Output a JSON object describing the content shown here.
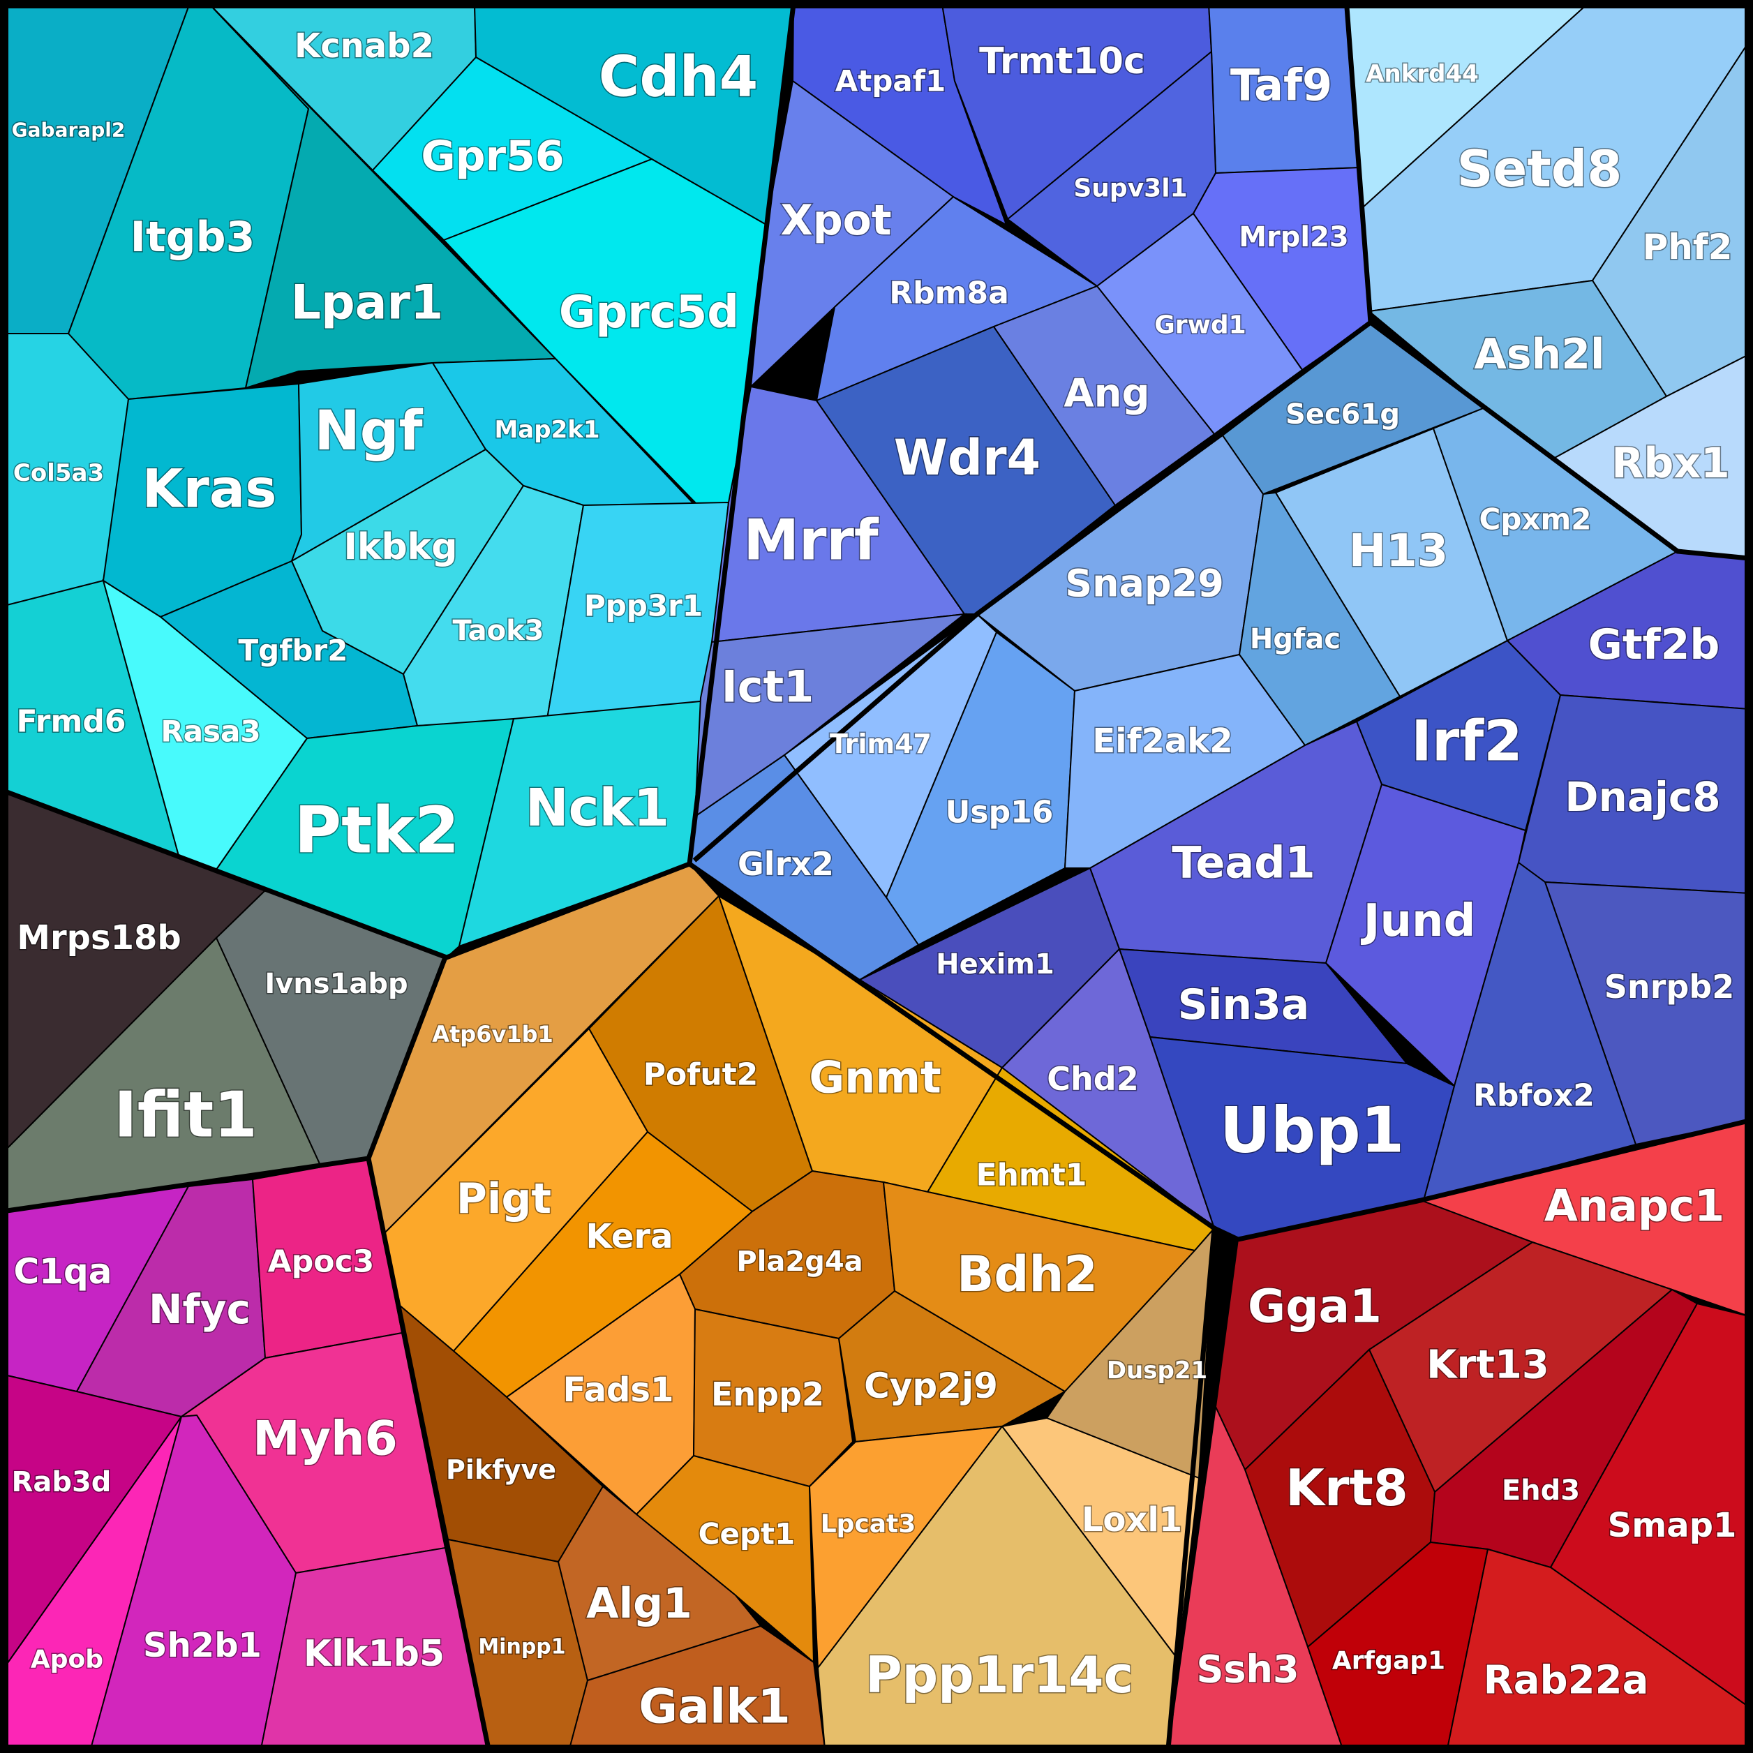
{
  "voronoi_treemap": {
    "cells": [
      {
        "label": "Gabarapl2",
        "color": "#0aaec6"
      },
      {
        "label": "Kcnab2",
        "color": "#33cfe0"
      },
      {
        "label": "Cdh4",
        "color": "#03bcd2"
      },
      {
        "label": "Itgb3",
        "color": "#06bac6"
      },
      {
        "label": "Lpar1",
        "color": "#04aab0"
      },
      {
        "label": "Gpr56",
        "color": "#03e0f0"
      },
      {
        "label": "Gprc5d",
        "color": "#00e8ee"
      },
      {
        "label": "Col5a3",
        "color": "#26d3e4"
      },
      {
        "label": "Kras",
        "color": "#02b8d0"
      },
      {
        "label": "Ngf",
        "color": "#22cae6"
      },
      {
        "label": "Map2k1",
        "color": "#1ac8e8"
      },
      {
        "label": "Ikbkg",
        "color": "#3cdae8"
      },
      {
        "label": "Taok3",
        "color": "#44dcee"
      },
      {
        "label": "Ppp3r1",
        "color": "#38d4f4"
      },
      {
        "label": "Tgfbr2",
        "color": "#04b6d2"
      },
      {
        "label": "Frmd6",
        "color": "#14d0d4"
      },
      {
        "label": "Rasa3",
        "color": "#48fafc"
      },
      {
        "label": "Ptk2",
        "color": "#0ad4d0"
      },
      {
        "label": "Nck1",
        "color": "#1ed8e0"
      },
      {
        "label": "Mrps18b",
        "color": "#3a2c30"
      },
      {
        "label": "Ivns1abp",
        "color": "#687474"
      },
      {
        "label": "Ifit1",
        "color": "#6c7c6c"
      },
      {
        "label": "Atpaf1",
        "color": "#4a5ae4"
      },
      {
        "label": "Trmt10c",
        "color": "#4c5cde"
      },
      {
        "label": "Taf9",
        "color": "#5a80ec"
      },
      {
        "label": "Xpot",
        "color": "#6880ec"
      },
      {
        "label": "Supv3l1",
        "color": "#5064e0"
      },
      {
        "label": "Mrpl23",
        "color": "#6670f8"
      },
      {
        "label": "Rbm8a",
        "color": "#6080ee"
      },
      {
        "label": "Grwd1",
        "color": "#7a92fa"
      },
      {
        "label": "Mrrf",
        "color": "#6a78ea"
      },
      {
        "label": "Wdr4",
        "color": "#3c62c4"
      },
      {
        "label": "Ang",
        "color": "#6a80e2"
      },
      {
        "label": "Ict1",
        "color": "#6c80dc"
      },
      {
        "label": "Ankrd44",
        "color": "#aee6fe"
      },
      {
        "label": "Setd8",
        "color": "#96cef8"
      },
      {
        "label": "Phf2",
        "color": "#90c8f0"
      },
      {
        "label": "Ash2l",
        "color": "#74b8e4"
      },
      {
        "label": "Rbx1",
        "color": "#b8dafc"
      },
      {
        "label": "Sec61g",
        "color": "#5898d4"
      },
      {
        "label": "Snap29",
        "color": "#7aa8ec"
      },
      {
        "label": "H13",
        "color": "#90c6f6"
      },
      {
        "label": "Cpxm2",
        "color": "#78b6ec"
      },
      {
        "label": "Hgfac",
        "color": "#62a4e0"
      },
      {
        "label": "Trim47",
        "color": "#90beff"
      },
      {
        "label": "Usp16",
        "color": "#66a2f2"
      },
      {
        "label": "Eif2ak2",
        "color": "#84b4fa"
      },
      {
        "label": "Glrx2",
        "color": "#5a8ee6"
      },
      {
        "label": "Gtf2b",
        "color": "#5050d0"
      },
      {
        "label": "Irf2",
        "color": "#3c54c6"
      },
      {
        "label": "Dnajc8",
        "color": "#4654c4"
      },
      {
        "label": "Tead1",
        "color": "#5a5cd8"
      },
      {
        "label": "Jund",
        "color": "#5c5ade"
      },
      {
        "label": "Hexim1",
        "color": "#4a4ebc"
      },
      {
        "label": "Sin3a",
        "color": "#3a44be"
      },
      {
        "label": "Snrpb2",
        "color": "#4c58c0"
      },
      {
        "label": "Chd2",
        "color": "#6e68d8"
      },
      {
        "label": "Rbfox2",
        "color": "#4458c4"
      },
      {
        "label": "Ubp1",
        "color": "#3448c0"
      },
      {
        "label": "Atp6v1b1",
        "color": "#e49e44"
      },
      {
        "label": "Pofut2",
        "color": "#d07c00"
      },
      {
        "label": "Gnmt",
        "color": "#f4a81e"
      },
      {
        "label": "Pigt",
        "color": "#fca82a"
      },
      {
        "label": "Kera",
        "color": "#f29400"
      },
      {
        "label": "Ehmt1",
        "color": "#e8aa00"
      },
      {
        "label": "Pla2g4a",
        "color": "#cc700a"
      },
      {
        "label": "Bdh2",
        "color": "#e48c16"
      },
      {
        "label": "Fads1",
        "color": "#fc9e36"
      },
      {
        "label": "Enpp2",
        "color": "#d87c12"
      },
      {
        "label": "Cyp2j9",
        "color": "#d27c10"
      },
      {
        "label": "Dusp21",
        "color": "#cca060"
      },
      {
        "label": "Pikfyve",
        "color": "#a24e04"
      },
      {
        "label": "Cept1",
        "color": "#e48a0c"
      },
      {
        "label": "Lpcat3",
        "color": "#fca030"
      },
      {
        "label": "Loxl1",
        "color": "#fcc67a"
      },
      {
        "label": "Minpp1",
        "color": "#b86012"
      },
      {
        "label": "Alg1",
        "color": "#c26624"
      },
      {
        "label": "Galk1",
        "color": "#c05e1e"
      },
      {
        "label": "Ppp1r14c",
        "color": "#e6be6a"
      },
      {
        "label": "C1qa",
        "color": "#c624c4"
      },
      {
        "label": "Nfyc",
        "color": "#bc2caa"
      },
      {
        "label": "Apoc3",
        "color": "#ec2486"
      },
      {
        "label": "Myh6",
        "color": "#f03294"
      },
      {
        "label": "Rab3d",
        "color": "#c60486"
      },
      {
        "label": "Apob",
        "color": "#fc26b6"
      },
      {
        "label": "Sh2b1",
        "color": "#d226bc"
      },
      {
        "label": "Klk1b5",
        "color": "#e034a8"
      },
      {
        "label": "Anapc1",
        "color": "#f4404a"
      },
      {
        "label": "Gga1",
        "color": "#ac101c"
      },
      {
        "label": "Krt13",
        "color": "#be2224"
      },
      {
        "label": "Krt8",
        "color": "#ac0c0c"
      },
      {
        "label": "Ehd3",
        "color": "#b4041c"
      },
      {
        "label": "Smap1",
        "color": "#cc0c1c"
      },
      {
        "label": "Ssh3",
        "color": "#ea3c58"
      },
      {
        "label": "Arfgap1",
        "color": "#c00008"
      },
      {
        "label": "Rab22a",
        "color": "#d41c1e"
      }
    ]
  }
}
